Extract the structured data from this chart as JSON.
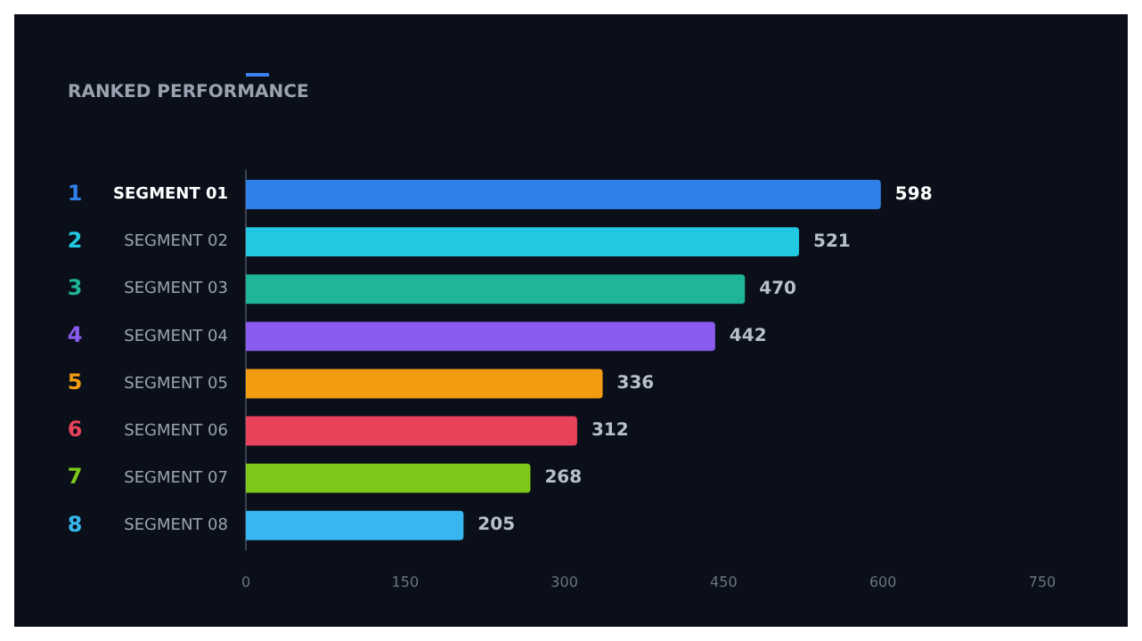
{
  "chart_data": {
    "type": "bar",
    "orientation": "horizontal",
    "title": "RANKED PERFORMANCE",
    "categories": [
      "SEGMENT 01",
      "SEGMENT 02",
      "SEGMENT 03",
      "SEGMENT 04",
      "SEGMENT 05",
      "SEGMENT 06",
      "SEGMENT 07",
      "SEGMENT 08"
    ],
    "values": [
      598,
      521,
      470,
      442,
      336,
      312,
      268,
      205
    ],
    "colors": [
      "#2f80e8",
      "#22c8e2",
      "#1fb597",
      "#8b5cf0",
      "#f39c12",
      "#e8435a",
      "#7ec81a",
      "#38b6f0"
    ],
    "annotations": [
      "1",
      "2",
      "3",
      "4",
      "5",
      "6",
      "7",
      "8"
    ],
    "xlim": [
      0,
      750
    ],
    "xticks": [
      0,
      150,
      300,
      450,
      600,
      750
    ],
    "data_labels": true,
    "grid": false,
    "legend": false
  }
}
